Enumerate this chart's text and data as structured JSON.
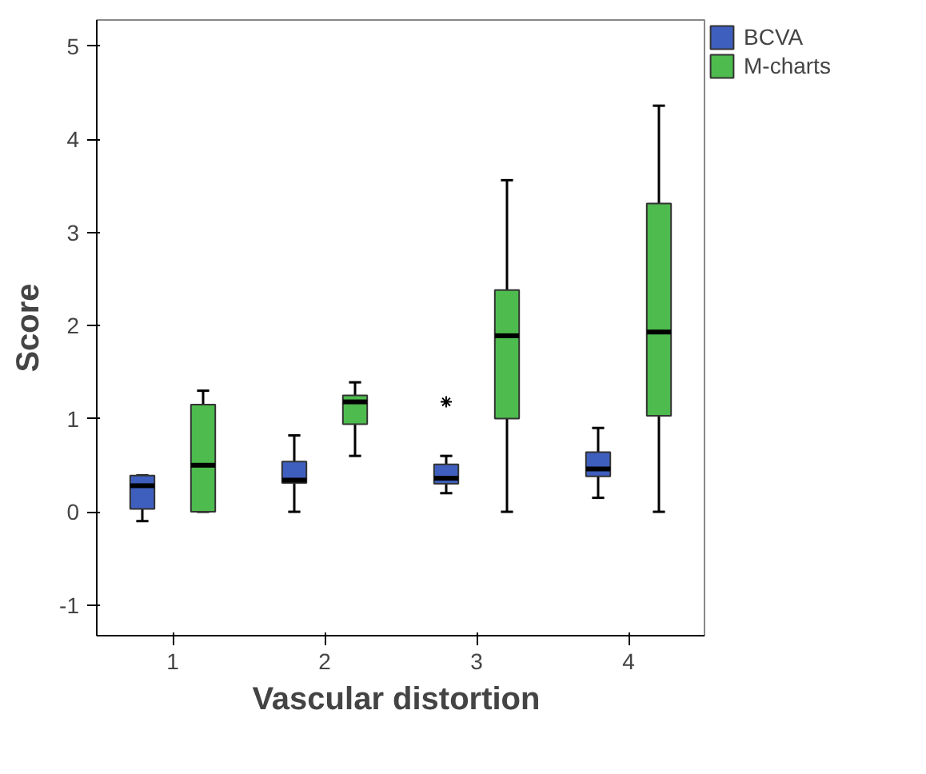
{
  "chart_data": {
    "type": "box",
    "xlabel": "Vascular  distortion",
    "ylabel": "Score",
    "categories": [
      "1",
      "2",
      "3",
      "4"
    ],
    "ylim": [
      -1.33,
      5.28
    ],
    "yticks": [
      -1,
      0,
      1,
      2,
      3,
      4,
      5
    ],
    "grid": false,
    "legend": "top right",
    "marker": "star",
    "series": [
      {
        "name": "BCVA",
        "color": "#3f5fbf",
        "boxes": [
          {
            "low": -0.1,
            "q1": 0.03,
            "median": 0.28,
            "q3": 0.39,
            "high": 0.39
          },
          {
            "low": 0.0,
            "q1": 0.31,
            "median": 0.34,
            "q3": 0.54,
            "high": 0.82
          },
          {
            "low": 0.2,
            "q1": 0.3,
            "median": 0.36,
            "q3": 0.51,
            "high": 0.6,
            "outliers": [
              1.18
            ]
          },
          {
            "low": 0.15,
            "q1": 0.38,
            "median": 0.46,
            "q3": 0.64,
            "high": 0.9
          }
        ]
      },
      {
        "name": "M-charts",
        "color": "#4dbb4d",
        "boxes": [
          {
            "low": 0.0,
            "q1": 0.0,
            "median": 0.5,
            "q3": 1.15,
            "high": 1.3
          },
          {
            "low": 0.6,
            "q1": 0.94,
            "median": 1.18,
            "q3": 1.25,
            "high": 1.39
          },
          {
            "low": 0.0,
            "q1": 1.0,
            "median": 1.89,
            "q3": 2.38,
            "high": 3.56
          },
          {
            "low": 0.0,
            "q1": 1.03,
            "median": 1.93,
            "q3": 3.31,
            "high": 4.36
          }
        ]
      }
    ]
  }
}
